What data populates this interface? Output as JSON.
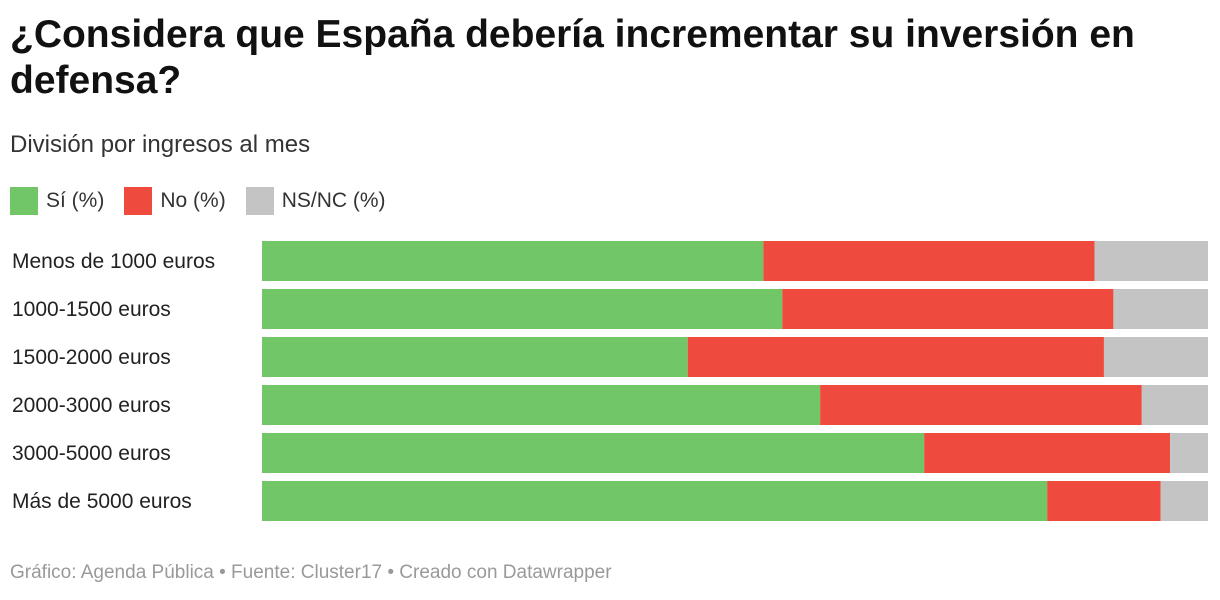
{
  "title": "¿Considera que España debería incrementar su inversión en defensa?",
  "subtitle": "División por ingresos al mes",
  "legend": [
    {
      "label": "Sí (%)",
      "color": "#71c767"
    },
    {
      "label": "No (%)",
      "color": "#ef4a3e"
    },
    {
      "label": "NS/NC (%)",
      "color": "#c4c4c4"
    }
  ],
  "chart_data": {
    "type": "bar",
    "stacked": true,
    "orientation": "horizontal",
    "categories": [
      "Menos de 1000 euros",
      "1000-1500 euros",
      "1500-2000 euros",
      "2000-3000 euros",
      "3000-5000 euros",
      "Más de 5000 euros"
    ],
    "series": [
      {
        "name": "Sí (%)",
        "color": "#71c767",
        "values": [
          53,
          55,
          45,
          59,
          70,
          83
        ]
      },
      {
        "name": "No (%)",
        "color": "#ef4a3e",
        "values": [
          35,
          35,
          44,
          34,
          26,
          12
        ]
      },
      {
        "name": "NS/NC (%)",
        "color": "#c4c4c4",
        "values": [
          12,
          10,
          11,
          7,
          4,
          5
        ]
      }
    ],
    "xlim": [
      0,
      100
    ],
    "grid": false,
    "legend_position": "top-left"
  },
  "footer": "Gráfico: Agenda Pública • Fuente: Cluster17 • Creado con Datawrapper"
}
